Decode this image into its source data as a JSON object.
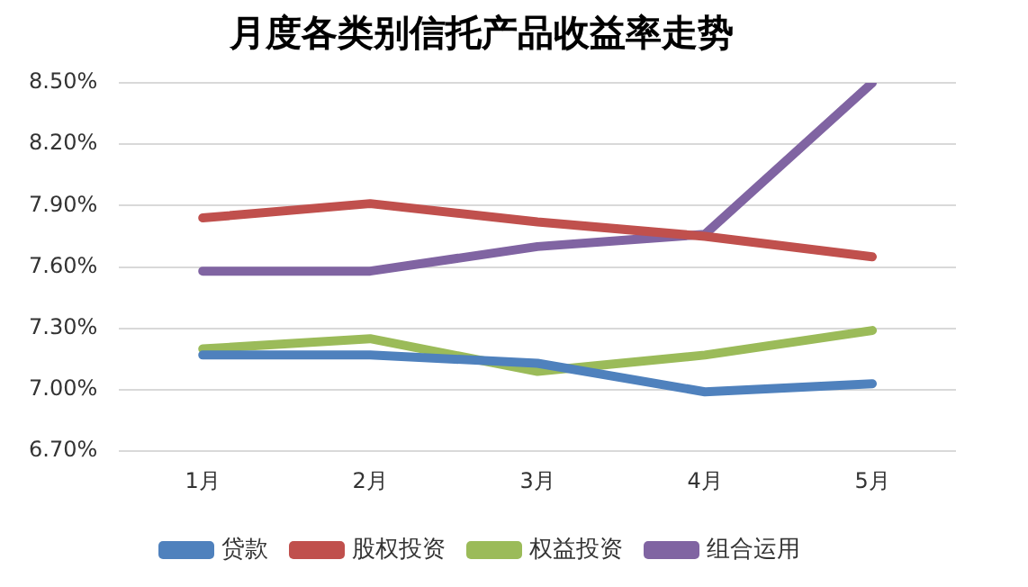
{
  "chart_data": {
    "type": "line",
    "title": "月度各类别信托产品收益率走势",
    "categories": [
      "1月",
      "2月",
      "3月",
      "4月",
      "5月"
    ],
    "series": [
      {
        "name": "贷款",
        "color": "#4f81bd",
        "values": [
          7.17,
          7.17,
          7.13,
          6.99,
          7.03
        ]
      },
      {
        "name": "股权投资",
        "color": "#c0504d",
        "values": [
          7.84,
          7.91,
          7.82,
          7.75,
          7.65
        ]
      },
      {
        "name": "权益投资",
        "color": "#9bbb59",
        "values": [
          7.2,
          7.25,
          7.09,
          7.17,
          7.29
        ]
      },
      {
        "name": "组合运用",
        "color": "#8064a2",
        "values": [
          7.58,
          7.58,
          7.7,
          7.76,
          8.5
        ]
      }
    ],
    "ylim": [
      6.7,
      8.5
    ],
    "yticks": [
      {
        "value": 6.7,
        "label": "6.70%"
      },
      {
        "value": 7.0,
        "label": "7.00%"
      },
      {
        "value": 7.3,
        "label": "7.30%"
      },
      {
        "value": 7.6,
        "label": "7.60%"
      },
      {
        "value": 7.9,
        "label": "7.90%"
      },
      {
        "value": 8.2,
        "label": "8.20%"
      },
      {
        "value": 8.5,
        "label": "8.50%"
      }
    ],
    "grid": "y",
    "legend": "bottom",
    "marker": "none",
    "line_style": "solid"
  }
}
